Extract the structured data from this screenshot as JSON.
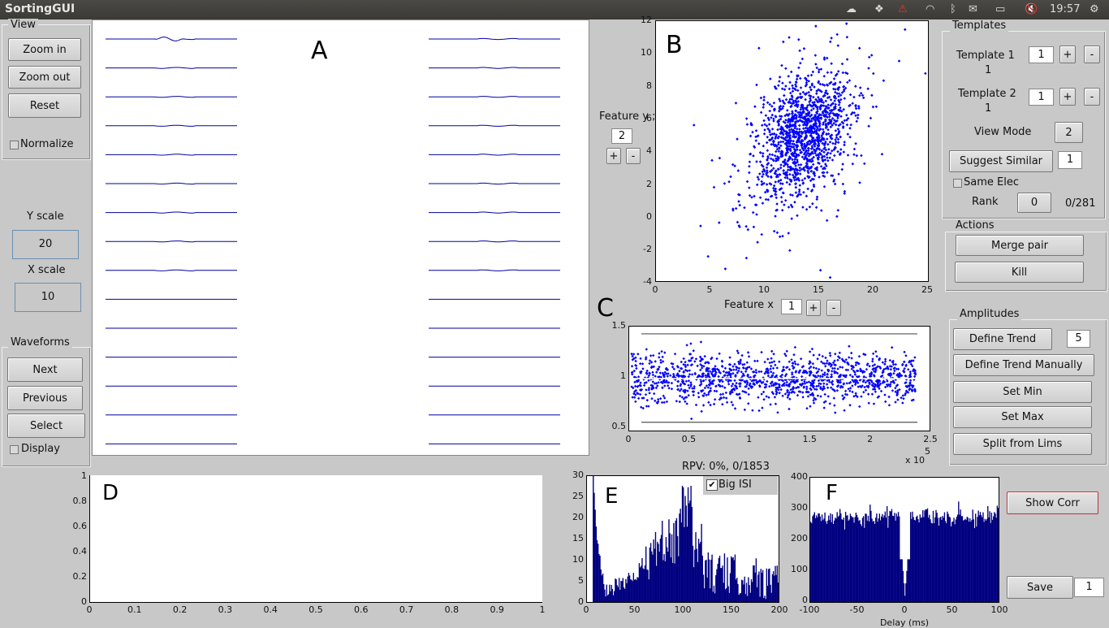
{
  "topbar": {
    "app_title": "SortingGUI",
    "clock": "19:57"
  },
  "view": {
    "title": "View",
    "zoom_in": "Zoom in",
    "zoom_out": "Zoom out",
    "reset": "Reset",
    "normalize": "Normalize"
  },
  "scale": {
    "y_label": "Y scale",
    "y_value": "20",
    "x_label": "X scale",
    "x_value": "10"
  },
  "waveforms": {
    "title": "Waveforms",
    "next": "Next",
    "previous": "Previous",
    "select": "Select",
    "display": "Display"
  },
  "panel_letters": {
    "a": "A",
    "b": "B",
    "c": "C",
    "d": "D",
    "e": "E",
    "f": "F"
  },
  "feature": {
    "y_label": "Feature y ;",
    "y_value": "2",
    "x_label": "Feature x",
    "x_value": "1",
    "plus": "+",
    "minus": "-"
  },
  "templates": {
    "title": "Templates",
    "t1_label": "Template 1",
    "t1_sub": "1",
    "t1_value": "1",
    "t2_label": "Template 2",
    "t2_sub": "1",
    "t2_value": "1",
    "view_mode_label": "View Mode",
    "view_mode_value": "2",
    "suggest_similar": "Suggest Similar",
    "suggest_value": "1",
    "same_elec": "Same Elec",
    "rank_label": "Rank",
    "rank_value": "0",
    "rank_count": "0/281"
  },
  "actions": {
    "title": "Actions",
    "merge_pair": "Merge pair",
    "kill": "Kill"
  },
  "amplitudes": {
    "title": "Amplitudes",
    "define_trend": "Define Trend",
    "trend_value": "5",
    "define_trend_manually": "Define Trend Manually",
    "set_min": "Set Min",
    "set_max": "Set Max",
    "split_from_lims": "Split from Lims"
  },
  "isi": {
    "rpv_text": "RPV: 0%, 0/1853",
    "big_isi": "Big ISI"
  },
  "corr": {
    "show_corr": "Show Corr",
    "save": "Save",
    "save_value": "1",
    "xlabel_partial": "Delay (ms)"
  },
  "axes_ticks": {
    "b_x": [
      "0",
      "5",
      "10",
      "15",
      "20",
      "25"
    ],
    "b_y": [
      "12",
      "10",
      "8",
      "6",
      "4",
      "2",
      "0",
      "-2",
      "-4"
    ],
    "c_x": [
      "0",
      "0.5",
      "1",
      "1.5",
      "2",
      "2.5"
    ],
    "c_y": [
      "1.5",
      "1",
      "0.5"
    ],
    "c_exp": "x 10",
    "c_exp_power": "5",
    "d_x": [
      "0",
      "0.1",
      "0.2",
      "0.3",
      "0.4",
      "0.5",
      "0.6",
      "0.7",
      "0.8",
      "0.9",
      "1"
    ],
    "d_y": [
      "1",
      "0.8",
      "0.6",
      "0.4",
      "0.2",
      "0"
    ],
    "e_x": [
      "0",
      "50",
      "100",
      "150",
      "200"
    ],
    "e_y": [
      "30",
      "25",
      "20",
      "15",
      "10",
      "5",
      "0"
    ],
    "f_x": [
      "-100",
      "-50",
      "0",
      "50",
      "100"
    ],
    "f_y": [
      "400",
      "300",
      "200",
      "100",
      "0"
    ]
  },
  "chart_data": [
    {
      "type": "line",
      "id": "A",
      "title": "",
      "series_count": 30,
      "description_values": "waveform traces flat (amplitude ~0)"
    },
    {
      "type": "scatter",
      "id": "B",
      "xlim": [
        0,
        25
      ],
      "ylim": [
        -4,
        12
      ],
      "cluster_center": [
        13.5,
        5
      ],
      "cluster_spread": [
        2.2,
        1.8
      ],
      "n_points": 1853,
      "color": "#0000ff"
    },
    {
      "type": "scatter",
      "id": "C",
      "xlim": [
        0,
        250000
      ],
      "ylim": [
        0.5,
        1.5
      ],
      "mean": 1.0,
      "hlines": [
        1.43,
        1.0,
        0.58
      ],
      "n_points": 1853,
      "color": "#0000ff"
    },
    {
      "type": "line",
      "id": "D",
      "xlim": [
        0,
        1
      ],
      "ylim": [
        0,
        1
      ]
    },
    {
      "type": "bar",
      "id": "E",
      "xlim": [
        0,
        200
      ],
      "ylim": [
        0,
        30
      ],
      "color": "#000080"
    },
    {
      "type": "bar",
      "id": "F",
      "xlim": [
        -100,
        100
      ],
      "ylim": [
        0,
        400
      ],
      "baseline_level": 275,
      "dip_center": 0,
      "color": "#000080"
    }
  ]
}
